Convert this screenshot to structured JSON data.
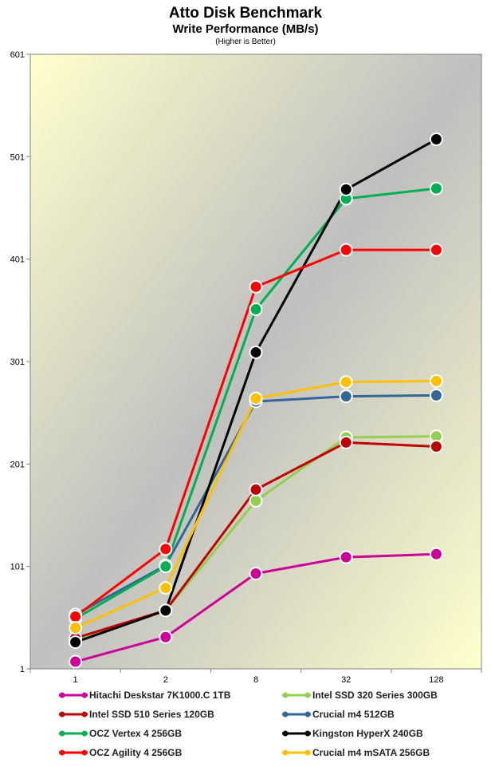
{
  "chart_data": {
    "type": "line",
    "title": "Atto Disk Benchmark",
    "subtitle": "Write Performance (MB/s)",
    "note": "(Higher is Better)",
    "categories": [
      "1",
      "2",
      "8",
      "32",
      "128"
    ],
    "ylim": [
      1,
      601
    ],
    "yticks": [
      "1",
      "101",
      "201",
      "301",
      "401",
      "501",
      "601"
    ],
    "legend_position": "bottom",
    "series": [
      {
        "name": "Hitachi Deskstar 7K1000.C 1TB",
        "color": "#cc0099",
        "values": [
          8,
          32,
          94,
          110,
          113
        ]
      },
      {
        "name": "Intel SSD 320 Series 300GB",
        "color": "#92d050",
        "values": [
          29,
          58,
          165,
          227,
          228
        ]
      },
      {
        "name": "Intel SSD 510 Series 120GB",
        "color": "#c00000",
        "values": [
          31,
          58,
          176,
          222,
          218
        ]
      },
      {
        "name": "Crucial m4 512GB",
        "color": "#336699",
        "values": [
          54,
          102,
          262,
          267,
          268
        ]
      },
      {
        "name": "OCZ Vertex 4 256GB",
        "color": "#00b050",
        "values": [
          50,
          101,
          352,
          460,
          470
        ]
      },
      {
        "name": "Kingston HyperX 240GB",
        "color": "#000000",
        "values": [
          27,
          58,
          310,
          469,
          518
        ]
      },
      {
        "name": "OCZ Agility 4 256GB",
        "color": "#ff0000",
        "values": [
          52,
          118,
          374,
          410,
          410
        ]
      },
      {
        "name": "Crucial m4 mSATA 256GB",
        "color": "#ffc000",
        "values": [
          41,
          80,
          265,
          281,
          282
        ]
      }
    ]
  }
}
